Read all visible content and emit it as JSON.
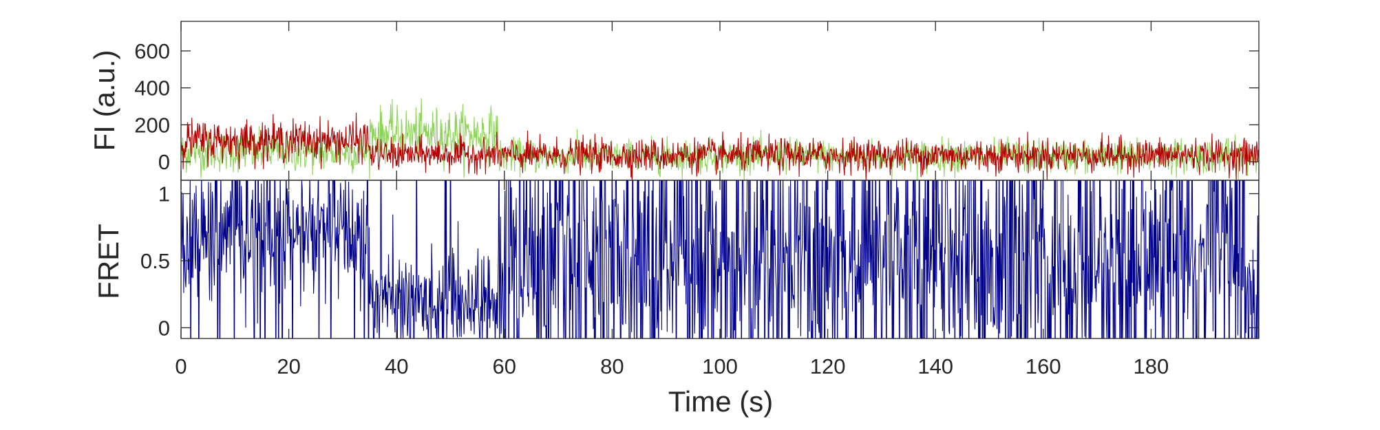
{
  "chart_data": [
    {
      "type": "line",
      "panel": "top",
      "ylabel": "FI (a.u.)",
      "xlim": [
        0,
        200
      ],
      "ylim": [
        -100,
        760
      ],
      "yticks": [
        0,
        200,
        400,
        600
      ],
      "grid": false,
      "legend": "none",
      "series": [
        {
          "color": "#8ed45a",
          "segments": [
            {
              "t0": 0,
              "t1": 35,
              "mean": 55,
              "sd": 55,
              "clip": [
                -100,
                300
              ]
            },
            {
              "t0": 35,
              "t1": 59,
              "mean": 150,
              "sd": 70,
              "clip": [
                -100,
                380
              ]
            },
            {
              "t0": 59,
              "t1": 200,
              "mean": 30,
              "sd": 45,
              "clip": [
                -100,
                230
              ]
            }
          ]
        },
        {
          "color": "#b30000",
          "segments": [
            {
              "t0": 0,
              "t1": 35,
              "mean": 115,
              "sd": 55,
              "clip": [
                -40,
                360
              ]
            },
            {
              "t0": 35,
              "t1": 59,
              "mean": 40,
              "sd": 42,
              "clip": [
                -100,
                230
              ]
            },
            {
              "t0": 59,
              "t1": 200,
              "mean": 35,
              "sd": 45,
              "clip": [
                -100,
                220
              ]
            }
          ]
        }
      ]
    },
    {
      "type": "line",
      "panel": "bottom",
      "ylabel": "FRET",
      "xlabel": "Time (s)",
      "xlim": [
        0,
        200
      ],
      "ylim": [
        -0.08,
        1.1
      ],
      "xticks": [
        0,
        20,
        40,
        60,
        80,
        100,
        120,
        140,
        160,
        180
      ],
      "yticks": [
        0,
        0.5,
        1
      ],
      "ytick_labels": [
        "0",
        "0.5",
        "1"
      ],
      "grid": false,
      "legend": "none",
      "series": [
        {
          "color": "#00008b",
          "segments": [
            {
              "t0": 0,
              "t1": 35,
              "mean": 0.7,
              "sd": 0.25,
              "spike_prob": 0.06
            },
            {
              "t0": 35,
              "t1": 59,
              "mean": 0.2,
              "sd": 0.18,
              "spike_prob": 0.03
            },
            {
              "t0": 59,
              "t1": 200,
              "mean": 0.5,
              "sd": 0.35,
              "spike_prob": 0.25
            }
          ]
        }
      ]
    }
  ]
}
